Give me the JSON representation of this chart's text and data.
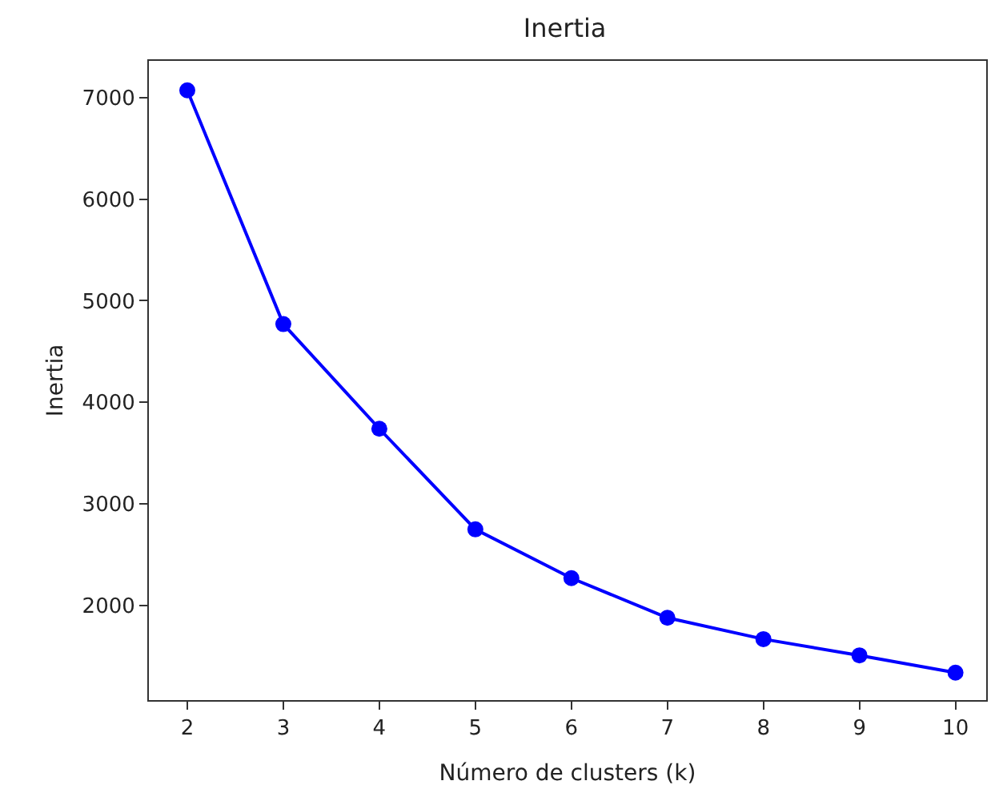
{
  "chart_data": {
    "type": "line",
    "title": "Inertia",
    "xlabel": "Número de clusters (k)",
    "ylabel": "Inertia",
    "x": [
      2,
      3,
      4,
      5,
      6,
      7,
      8,
      9,
      10
    ],
    "series": [
      {
        "color": "#0000ff",
        "values": [
          7070,
          4770,
          3740,
          2750,
          2270,
          1880,
          1670,
          1510,
          1340
        ]
      }
    ],
    "xlim": [
      1.6,
      10.32
    ],
    "xticks": [
      2,
      3,
      4,
      5,
      6,
      7,
      8,
      9,
      10
    ],
    "ylim": [
      1070,
      7360
    ],
    "yticks": [
      2000,
      3000,
      4000,
      5000,
      6000,
      7000
    ],
    "marker": "circle",
    "line_style": "solid"
  }
}
